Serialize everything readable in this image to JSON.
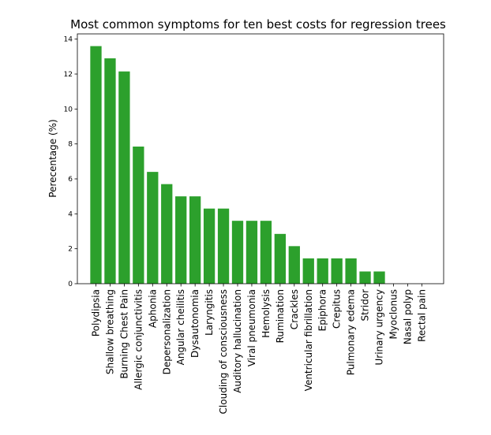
{
  "chart_data": {
    "type": "bar",
    "title": "Most common symptoms for ten best costs for regression trees",
    "xlabel": "",
    "ylabel": "Perecentage (%)",
    "ylim": [
      0,
      14.3
    ],
    "yticks": [
      "0",
      "2",
      "4",
      "6",
      "8",
      "10",
      "12",
      "14"
    ],
    "grid": false,
    "bar_color": "#2ca02c",
    "categories": [
      "Polydipsia",
      "Shallow breathing",
      "Burning Chest Pain",
      "Allergic conjunctivitis",
      "Aphonia",
      "Depersonalization",
      "Angular cheilitis",
      "Dysautonomia",
      "Laryngitis",
      "Clouding of consciousness",
      "Auditory hallucination",
      "Viral pneumonia",
      "Hemolysis",
      "Rumination",
      "Crackles",
      "Ventricular fibrillation",
      "Epiphora",
      "Crepitus",
      "Pulmonary edema",
      "Stridor",
      "Urinary urgency",
      "Myoclonus",
      "Nasal polyp",
      "Rectal pain"
    ],
    "values": [
      13.6,
      12.9,
      12.15,
      7.85,
      6.4,
      5.7,
      5.0,
      5.0,
      4.3,
      4.3,
      3.6,
      3.6,
      3.6,
      2.85,
      2.15,
      1.45,
      1.45,
      1.45,
      1.45,
      0.7,
      0.7,
      0,
      0,
      0
    ]
  }
}
